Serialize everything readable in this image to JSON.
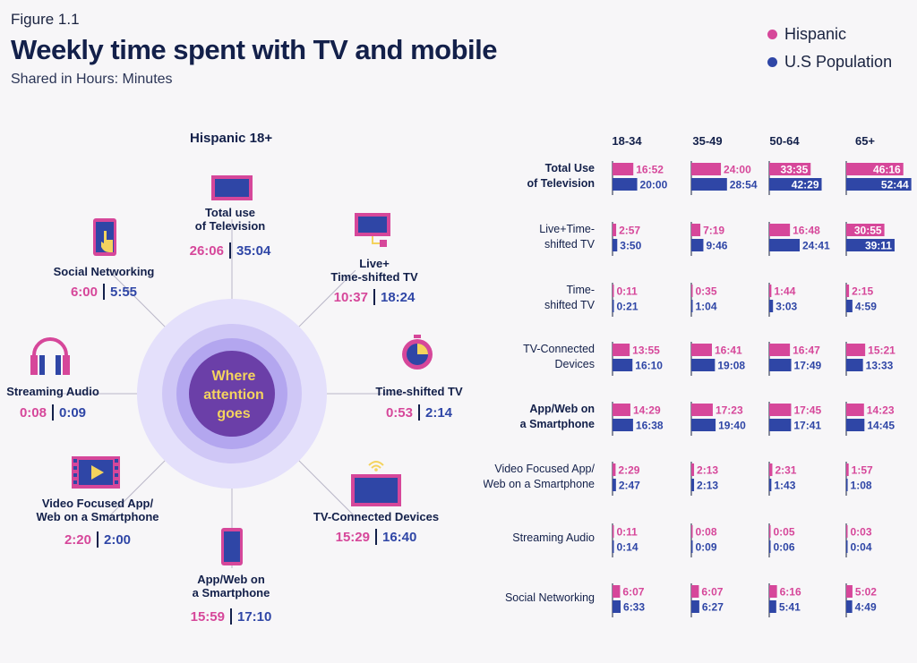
{
  "figure_label": "Figure 1.1",
  "title": "Weekly time spent with TV and mobile",
  "subtitle": "Shared in Hours: Minutes",
  "legend": [
    {
      "name": "Hispanic",
      "color": "#d6479a"
    },
    {
      "name": "U.S Population",
      "color": "#2f46a6"
    }
  ],
  "left": {
    "title": "Hispanic 18+",
    "center_text": [
      "Where",
      "attention",
      "goes"
    ],
    "categories": [
      {
        "label": [
          "Total use",
          "of Television"
        ],
        "hispanic": "26:06",
        "us": "35:04",
        "icon": "tv-icon"
      },
      {
        "label": [
          "Live+",
          "Time-shifted TV"
        ],
        "hispanic": "10:37",
        "us": "18:24",
        "icon": "tv-plug-icon"
      },
      {
        "label": [
          "Time-shifted TV"
        ],
        "hispanic": "0:53",
        "us": "2:14",
        "icon": "timer-icon"
      },
      {
        "label": [
          "TV-Connected Devices"
        ],
        "hispanic": "15:29",
        "us": "16:40",
        "icon": "wifi-tv-icon"
      },
      {
        "label": [
          "App/Web on",
          "a Smartphone"
        ],
        "hispanic": "15:59",
        "us": "17:10",
        "icon": "smartphone-icon"
      },
      {
        "label": [
          "Video Focused App/",
          "Web on a Smartphone"
        ],
        "hispanic": "2:20",
        "us": "2:00",
        "icon": "video-play-icon"
      },
      {
        "label": [
          "Streaming Audio"
        ],
        "hispanic": "0:08",
        "us": "0:09",
        "icon": "headphones-icon"
      },
      {
        "label": [
          "Social Networking"
        ],
        "hispanic": "6:00",
        "us": "5:55",
        "icon": "touch-phone-icon"
      }
    ]
  },
  "colors": {
    "hispanic": "#d6479a",
    "us": "#2f46a6",
    "circle_outer": "#e4e0fb",
    "circle_mid": "#cfc7f6",
    "circle_inner": "#b3a6ef",
    "circle_core": "#6b3fa8"
  },
  "chart_data": {
    "type": "bar",
    "orientation": "horizontal",
    "age_groups": [
      "18-34",
      "35-49",
      "50-64",
      "65+"
    ],
    "series_names": [
      "Hispanic",
      "U.S Population"
    ],
    "categories": [
      {
        "label": [
          "Total Use",
          "of Television"
        ],
        "bold": true,
        "hispanic": [
          "16:52",
          "24:00",
          "33:35",
          "46:16"
        ],
        "us": [
          "20:00",
          "28:54",
          "42:29",
          "52:44"
        ]
      },
      {
        "label": [
          "Live+Time-",
          "shifted TV"
        ],
        "bold": false,
        "hispanic": [
          "2:57",
          "7:19",
          "16:48",
          "30:55"
        ],
        "us": [
          "3:50",
          "9:46",
          "24:41",
          "39:11"
        ]
      },
      {
        "label": [
          "Time-",
          "shifted TV"
        ],
        "bold": false,
        "hispanic": [
          "0:11",
          "0:35",
          "1:44",
          "2:15"
        ],
        "us": [
          "0:21",
          "1:04",
          "3:03",
          "4:59"
        ]
      },
      {
        "label": [
          "TV-Connected",
          "Devices"
        ],
        "bold": false,
        "hispanic": [
          "13:55",
          "16:41",
          "16:47",
          "15:21"
        ],
        "us": [
          "16:10",
          "19:08",
          "17:49",
          "13:33"
        ]
      },
      {
        "label": [
          "App/Web on",
          "a Smartphone"
        ],
        "bold": true,
        "hispanic": [
          "14:29",
          "17:23",
          "17:45",
          "14:23"
        ],
        "us": [
          "16:38",
          "19:40",
          "17:41",
          "14:45"
        ]
      },
      {
        "label": [
          "Video Focused App/",
          "Web on a Smartphone"
        ],
        "bold": false,
        "hispanic": [
          "2:29",
          "2:13",
          "2:31",
          "1:57"
        ],
        "us": [
          "2:47",
          "2:13",
          "1:43",
          "1:08"
        ]
      },
      {
        "label": [
          "Streaming Audio"
        ],
        "bold": false,
        "hispanic": [
          "0:11",
          "0:08",
          "0:05",
          "0:03"
        ],
        "us": [
          "0:14",
          "0:09",
          "0:06",
          "0:04"
        ]
      },
      {
        "label": [
          "Social Networking"
        ],
        "bold": false,
        "hispanic": [
          "6:07",
          "6:07",
          "6:16",
          "5:02"
        ],
        "us": [
          "6:33",
          "6:27",
          "5:41",
          "4:49"
        ]
      }
    ]
  }
}
